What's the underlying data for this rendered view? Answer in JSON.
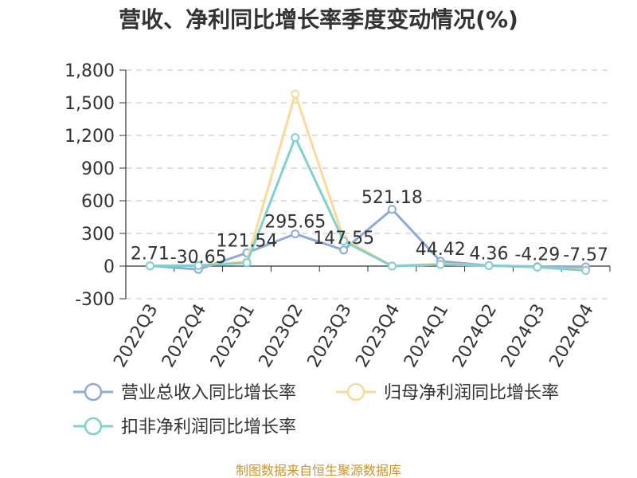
{
  "chart_data": {
    "type": "line",
    "title": "营收、净利同比增长率季度变动情况(%)",
    "categories": [
      "2022Q3",
      "2022Q4",
      "2023Q1",
      "2023Q2",
      "2023Q3",
      "2023Q4",
      "2024Q1",
      "2024Q2",
      "2024Q3",
      "2024Q4"
    ],
    "ylim": [
      -300,
      1800
    ],
    "yticks": [
      -300,
      0,
      300,
      600,
      900,
      1200,
      1500,
      1800
    ],
    "ytick_labels": [
      "-300",
      "0",
      "300",
      "600",
      "900",
      "1,200",
      "1,500",
      "1,800"
    ],
    "grid": true,
    "legend_position": "bottom",
    "series": [
      {
        "name": "营业总收入同比增长率",
        "color": "#8eaadb",
        "values": [
          2.71,
          -30.65,
          121.54,
          295.65,
          147.55,
          521.18,
          44.42,
          4.36,
          -4.29,
          -7.57
        ],
        "labels": [
          "2.71",
          "-30.65",
          "121.54",
          "295.65",
          "147.55",
          "521.18",
          "44.42",
          "4.36",
          "-4.29",
          "-7.57"
        ]
      },
      {
        "name": "归母净利润同比增长率",
        "color": "#fcd99a",
        "values": [
          2,
          5,
          40,
          1580,
          250,
          2,
          20,
          5,
          -10,
          -35
        ]
      },
      {
        "name": "扣非净利润同比增长率",
        "color": "#80d0d0",
        "values": [
          2,
          5,
          30,
          1180,
          230,
          0,
          15,
          5,
          -10,
          -40
        ]
      }
    ]
  },
  "source_text": "制图数据来自恒生聚源数据库"
}
